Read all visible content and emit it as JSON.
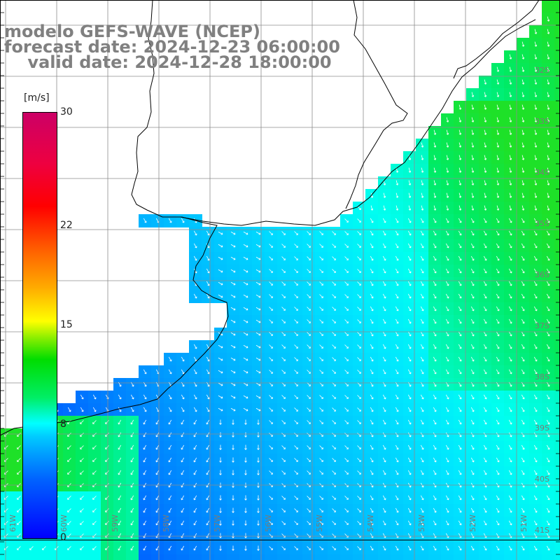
{
  "title": {
    "line1": "modelo GEFS-WAVE (NCEP)",
    "line2": "forecast date: 2024-12-23 06:00:00",
    "line3": "    valid date: 2024-12-28 18:00:00"
  },
  "colorbar": {
    "unit": "[m/s]",
    "ticks": [
      {
        "label": "30",
        "value": 30
      },
      {
        "label": "22",
        "value": 22
      },
      {
        "label": "15",
        "value": 15
      },
      {
        "label": "8",
        "value": 8
      },
      {
        "label": "0",
        "value": 0
      }
    ],
    "min": 0,
    "max": 30
  },
  "map": {
    "lat_labels": [
      "32S",
      "33S",
      "34S",
      "35S",
      "36S",
      "37S",
      "38S",
      "39S",
      "40S",
      "41S"
    ],
    "lon_labels": [
      "61W",
      "60W",
      "59W",
      "58W",
      "57W",
      "56W",
      "55W",
      "54W",
      "53W",
      "52W",
      "51W"
    ],
    "colors": {
      "land": "#ffffff",
      "grid": "#8c8c8c",
      "coast": "#000000",
      "arrows": "#ffffff"
    }
  }
}
